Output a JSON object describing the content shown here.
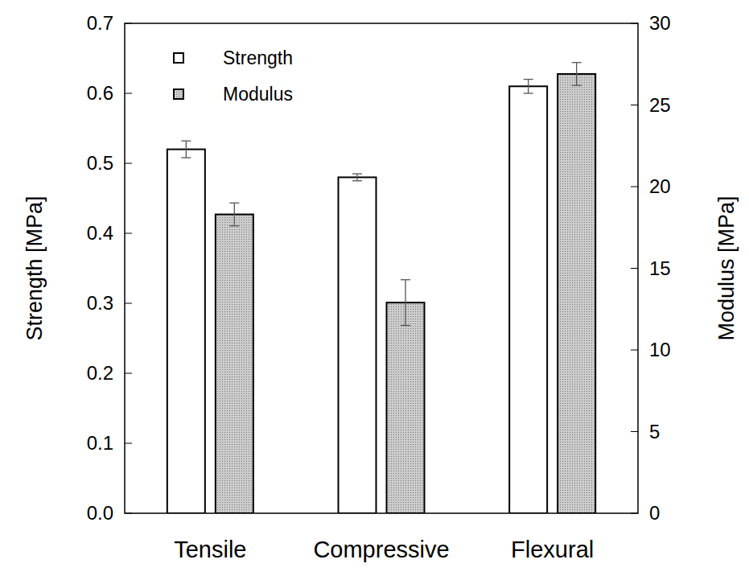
{
  "chart_data": {
    "type": "bar",
    "categories": [
      "Tensile",
      "Compressive",
      "Flexural"
    ],
    "y_label": "Strength  [MPa]",
    "y2_label": "Modulus  [MPa]",
    "ylim": [
      0,
      0.7
    ],
    "yticks": [
      {
        "value": 0,
        "label": "0.0"
      },
      0.1,
      0.2,
      0.3,
      0.4,
      0.5,
      0.6,
      0.7
    ],
    "y2lim": [
      0,
      30
    ],
    "y2ticks": [
      0,
      5,
      10,
      15,
      20,
      25,
      30
    ],
    "legend": "upper left",
    "series": [
      {
        "name": "Strength",
        "color": "#ffffff",
        "values": [
          0.52,
          0.48,
          0.61
        ],
        "errors": [
          0.012,
          0.005,
          0.01
        ]
      },
      {
        "name": "Modulus",
        "color": "#cccccc",
        "axis": "y2",
        "values": [
          18.3,
          12.9,
          26.9
        ],
        "errors": [
          0.7,
          1.4,
          0.7
        ]
      }
    ]
  }
}
